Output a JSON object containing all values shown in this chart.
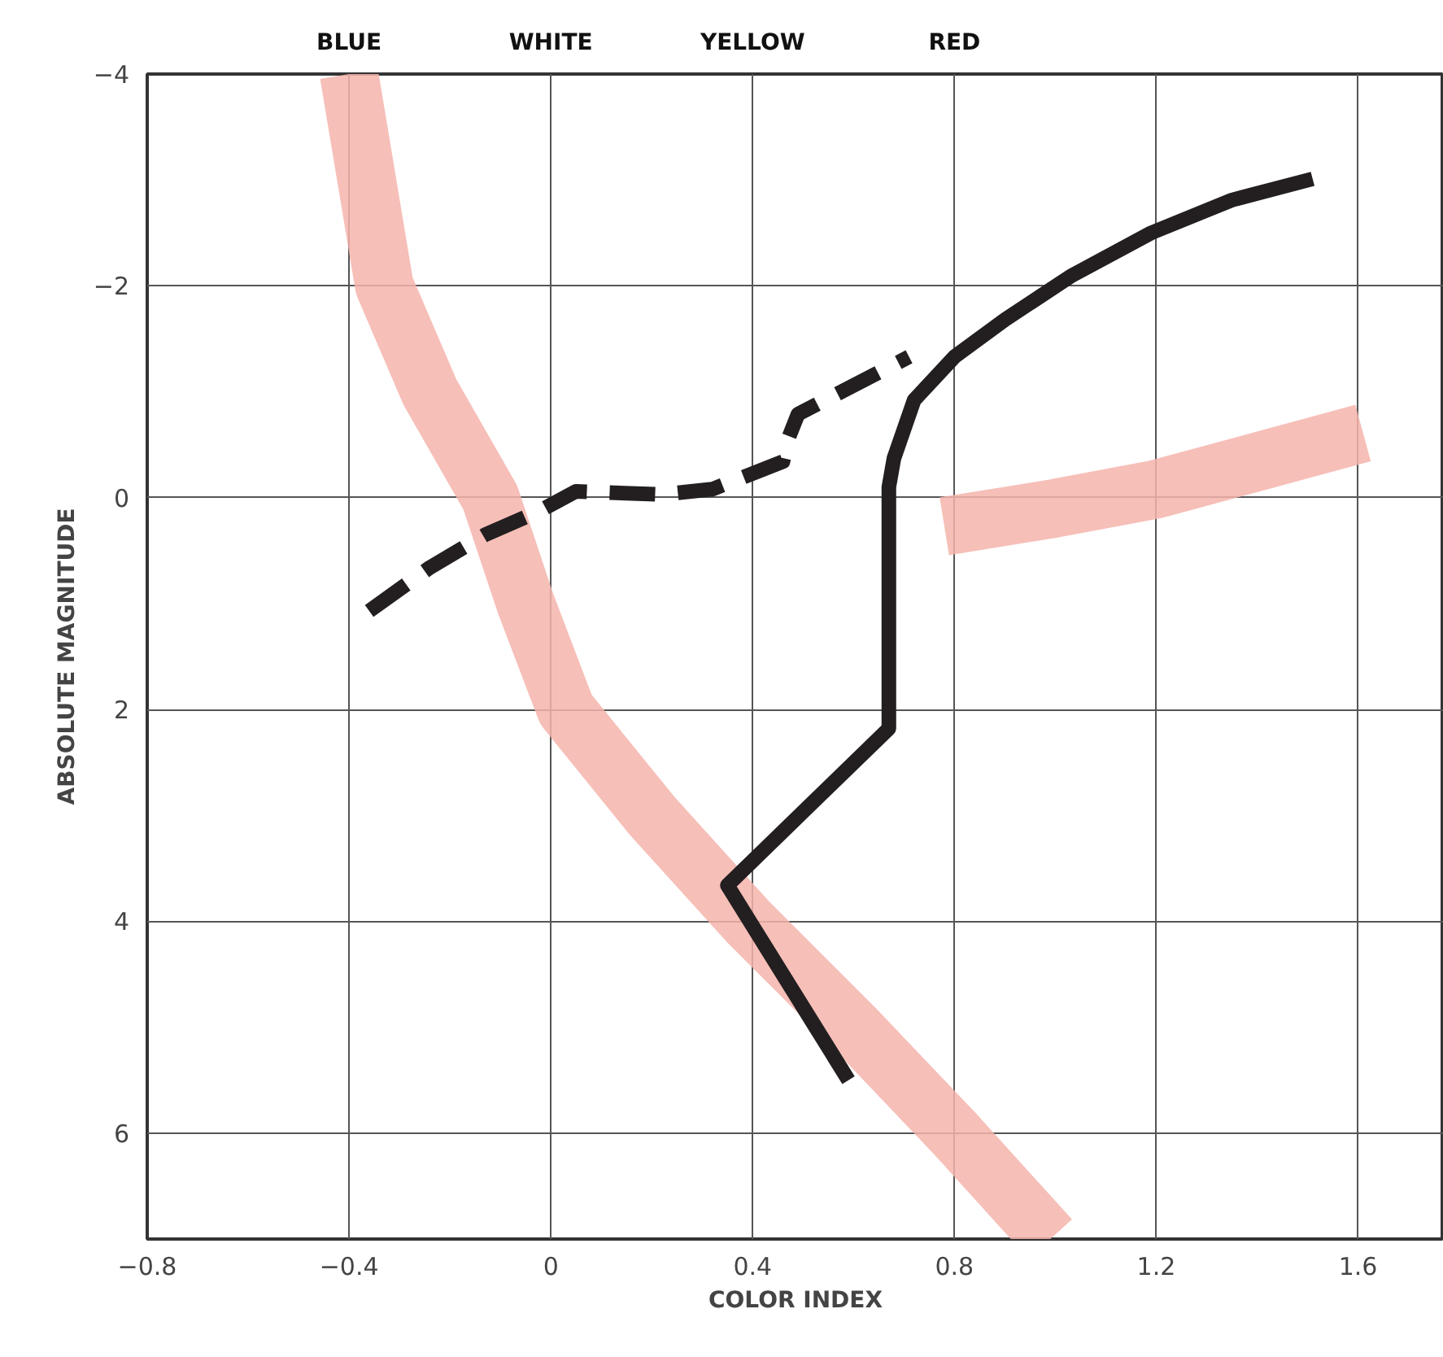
{
  "chart_data": {
    "type": "line",
    "xlabel": "COLOR INDEX",
    "ylabel": "ABSOLUTE MAGNITUDE",
    "xlim": [
      -0.8,
      1.77
    ],
    "xticks": [
      -0.8,
      -0.4,
      0,
      0.4,
      0.8,
      1.2,
      1.6
    ],
    "ylim": [
      7,
      -4
    ],
    "yticks": [
      -4,
      -2,
      0,
      2,
      4,
      6
    ],
    "annotations": [
      "BLUE",
      "WHITE",
      "YELLOW",
      "RED"
    ],
    "grid": true,
    "marker": "none",
    "series": [
      {
        "color": "#f4b4ac",
        "x": [
          -0.4,
          -0.33,
          -0.24,
          -0.12,
          -0.05,
          0.03,
          0.2,
          0.39,
          0.6,
          0.8,
          0.99
        ],
        "values": [
          -4,
          -2,
          -1,
          0,
          1,
          2,
          3,
          4,
          5,
          6,
          7
        ]
      },
      {
        "color": "#f4b4ac",
        "x": [
          0.78,
          1.0,
          1.2,
          1.61
        ],
        "values": [
          0.27,
          0.1,
          -0.08,
          -0.61
        ]
      },
      {
        "color": "#231f20",
        "x": [
          0.59,
          0.35,
          0.67,
          0.67,
          0.68,
          0.72,
          0.8,
          0.9,
          1.03,
          1.19,
          1.35,
          1.51
        ],
        "values": [
          5.5,
          3.66,
          2.18,
          -0.1,
          -0.37,
          -0.92,
          -1.33,
          -1.68,
          -2.09,
          -2.5,
          -2.81,
          -3.01
        ]
      },
      {
        "color": "#231f20",
        "line_style": "dashed",
        "x": [
          -0.36,
          -0.24,
          -0.13,
          -0.02,
          0.05,
          0.22,
          0.32,
          0.46,
          0.47,
          0.49,
          0.71
        ],
        "values": [
          1.07,
          0.66,
          0.35,
          0.12,
          -0.06,
          -0.03,
          -0.08,
          -0.34,
          -0.55,
          -0.79,
          -1.33
        ]
      }
    ]
  }
}
